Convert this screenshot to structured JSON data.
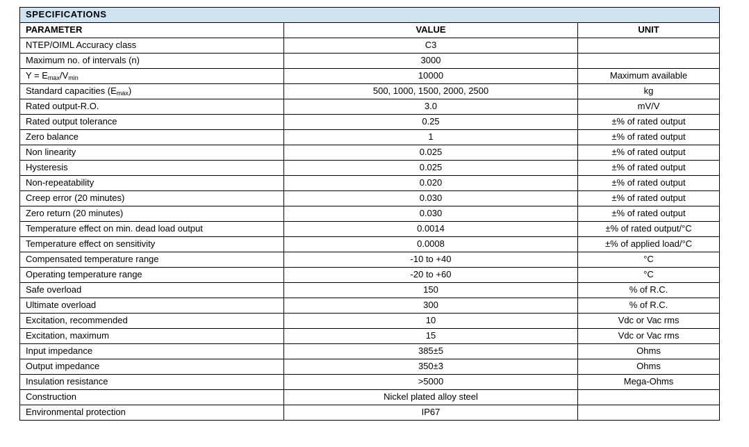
{
  "colors": {
    "title_band_bg": "#cfe3f1",
    "border": "#000000",
    "text": "#000000"
  },
  "table": {
    "title": "SPECIFICATIONS",
    "columns": [
      "PARAMETER",
      "VALUE",
      "UNIT"
    ],
    "rows": [
      {
        "parameter": "NTEP/OIML Accuracy class",
        "value": "C3",
        "unit": ""
      },
      {
        "parameter": "Maximum no. of intervals (n)",
        "value": "3000",
        "unit": ""
      },
      {
        "parameter": "Y = E_{max}/V_{min}",
        "value": "10000",
        "unit": "Maximum available"
      },
      {
        "parameter": "Standard capacities (E_{max})",
        "value": "500, 1000, 1500, 2000, 2500",
        "unit": "kg"
      },
      {
        "parameter": "Rated output-R.O.",
        "value": "3.0",
        "unit": "mV/V"
      },
      {
        "parameter": "Rated output tolerance",
        "value": "0.25",
        "unit": "±% of rated output"
      },
      {
        "parameter": "Zero balance",
        "value": "1",
        "unit": "±% of rated output"
      },
      {
        "parameter": "Non linearity",
        "value": "0.025",
        "unit": "±% of rated output"
      },
      {
        "parameter": "Hysteresis",
        "value": "0.025",
        "unit": "±% of rated output"
      },
      {
        "parameter": "Non-repeatability",
        "value": "0.020",
        "unit": "±% of rated output"
      },
      {
        "parameter": "Creep error (20 minutes)",
        "value": "0.030",
        "unit": "±% of rated output"
      },
      {
        "parameter": "Zero return (20 minutes)",
        "value": "0.030",
        "unit": "±% of rated output"
      },
      {
        "parameter": "Temperature effect on min. dead load output",
        "value": "0.0014",
        "unit": "±% of rated output/°C"
      },
      {
        "parameter": "Temperature effect on sensitivity",
        "value": "0.0008",
        "unit": "±% of applied load/°C"
      },
      {
        "parameter": "Compensated temperature range",
        "value": "-10 to +40",
        "unit": "°C"
      },
      {
        "parameter": "Operating temperature range",
        "value": "-20 to +60",
        "unit": "°C"
      },
      {
        "parameter": "Safe overload",
        "value": "150",
        "unit": "% of R.C."
      },
      {
        "parameter": "Ultimate overload",
        "value": "300",
        "unit": "% of R.C."
      },
      {
        "parameter": "Excitation, recommended",
        "value": "10",
        "unit": "Vdc or Vac rms"
      },
      {
        "parameter": "Excitation, maximum",
        "value": "15",
        "unit": "Vdc or Vac rms"
      },
      {
        "parameter": "Input impedance",
        "value": "385±5",
        "unit": "Ohms"
      },
      {
        "parameter": "Output impedance",
        "value": "350±3",
        "unit": "Ohms"
      },
      {
        "parameter": "Insulation resistance",
        "value": ">5000",
        "unit": "Mega-Ohms"
      },
      {
        "parameter": "Construction",
        "value": "Nickel plated alloy steel",
        "unit": ""
      },
      {
        "parameter": "Environmental protection",
        "value": "IP67",
        "unit": ""
      }
    ]
  }
}
